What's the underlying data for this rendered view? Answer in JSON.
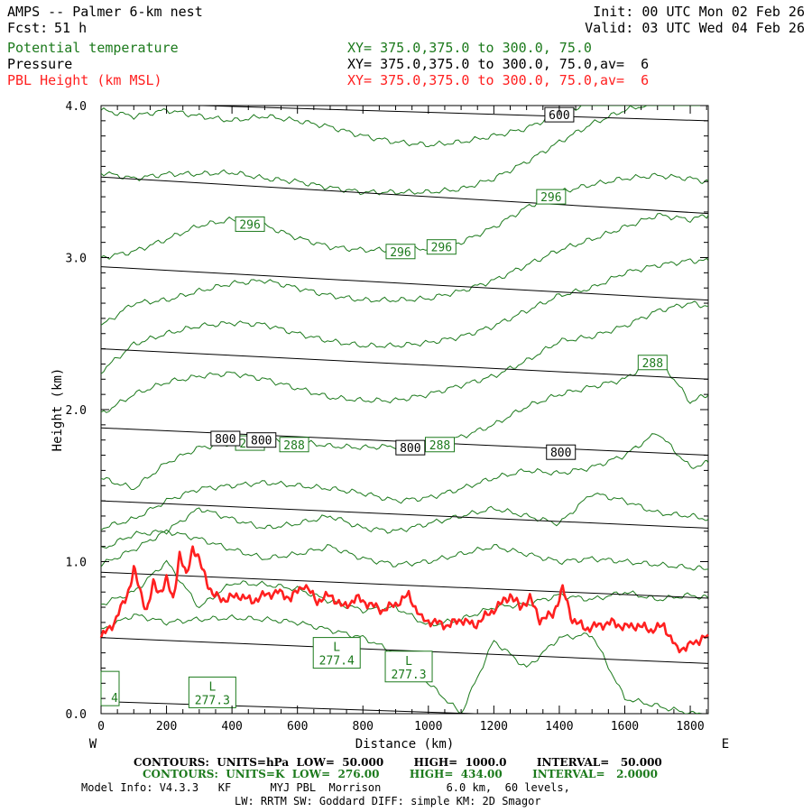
{
  "header": {
    "title": "AMPS -- Palmer 6-km nest",
    "init": "Init: 00 UTC Mon 02 Feb 26",
    "fcst_label": "Fcst:",
    "fcst_value": "51 h",
    "valid": "Valid: 03 UTC Wed 04 Feb 26",
    "fields": [
      {
        "name": "Potential temperature",
        "xy": "XY= 375.0,375.0 to 300.0, 75.0",
        "color": "#1c7a1c"
      },
      {
        "name": "Pressure",
        "xy": "XY= 375.0,375.0 to 300.0, 75.0,av=  6",
        "color": "#000000"
      },
      {
        "name": "PBL Height (km MSL)",
        "xy": "XY= 375.0,375.0 to 300.0, 75.0,av=  6",
        "color": "#ff2020"
      }
    ]
  },
  "footer": {
    "line1": "CONTOURS:  UNITS=hPa  LOW=  50.000        HIGH=  1000.0        INTERVAL=   50.000",
    "line2": "CONTOURS:  UNITS=K  LOW=  276.00        HIGH=  434.00        INTERVAL=   2.0000",
    "line3": "Model Info: V4.3.3   KF      MYJ PBL  Morrison          6.0 km,  60 levels,",
    "line4": "LW: RRTM SW: Goddard DIFF: simple KM: 2D Smagor"
  },
  "colors": {
    "theta": "#1c7a1c",
    "pressure": "#000000",
    "pbl": "#ff2020"
  },
  "chart_data": {
    "type": "line",
    "title": "AMPS -- Palmer 6-km nest",
    "xlabel": "Distance (km)",
    "ylabel": "Height (km)",
    "xlim": [
      0,
      1855
    ],
    "ylim": [
      0,
      4.0
    ],
    "x_ticks": [
      0,
      200,
      400,
      600,
      800,
      1000,
      1200,
      1400,
      1600,
      1800
    ],
    "x_minor_step": 50,
    "y_ticks": [
      0.0,
      1.0,
      2.0,
      3.0,
      4.0
    ],
    "y_tick_labels": [
      "0.0",
      "1.0",
      "2.0",
      "3.0",
      "4.0"
    ],
    "y_minor_step": 0.1,
    "x_end_labels": {
      "left": "W",
      "right": "E"
    },
    "pressure_lines": [
      {
        "x": [
          0,
          1855
        ],
        "y": [
          3.53,
          3.29
        ]
      },
      {
        "x": [
          0,
          1855
        ],
        "y": [
          2.94,
          2.72
        ]
      },
      {
        "x": [
          0,
          1855
        ],
        "y": [
          2.4,
          2.2
        ]
      },
      {
        "x": [
          0,
          1855
        ],
        "y": [
          1.88,
          1.7
        ]
      },
      {
        "x": [
          0,
          1855
        ],
        "y": [
          1.4,
          1.22
        ]
      },
      {
        "x": [
          0,
          1855
        ],
        "y": [
          0.93,
          0.76
        ]
      },
      {
        "x": [
          0,
          1855
        ],
        "y": [
          0.5,
          0.33
        ]
      },
      {
        "x": [
          0,
          1855
        ],
        "y": [
          0.08,
          -0.05
        ]
      },
      {
        "x": [
          0,
          1855
        ],
        "y": [
          4.02,
          3.9
        ]
      }
    ],
    "pressure_labels": [
      {
        "text": "600",
        "x": 1400,
        "y": 3.94
      },
      {
        "text": "800",
        "x": 380,
        "y": 1.81
      },
      {
        "text": "800",
        "x": 490,
        "y": 1.8
      },
      {
        "text": "800",
        "x": 945,
        "y": 1.75
      },
      {
        "text": "800",
        "x": 1405,
        "y": 1.72
      }
    ],
    "theta_series": [
      {
        "x": [
          0,
          100,
          200,
          300,
          400,
          500,
          600,
          700,
          800,
          900,
          1000,
          1100,
          1200,
          1300,
          1400,
          1500,
          1600,
          1700,
          1800,
          1855
        ],
        "y": [
          3.97,
          3.93,
          3.97,
          3.93,
          3.9,
          3.93,
          3.9,
          3.86,
          3.8,
          3.76,
          3.74,
          3.76,
          3.8,
          3.85,
          3.95,
          4.02,
          4.02,
          4.02,
          4.02,
          4.02
        ]
      },
      {
        "x": [
          0,
          100,
          200,
          300,
          400,
          500,
          600,
          700,
          800,
          900,
          1000,
          1100,
          1200,
          1300,
          1400,
          1500,
          1600,
          1700,
          1800,
          1855
        ],
        "y": [
          3.56,
          3.52,
          3.55,
          3.55,
          3.56,
          3.52,
          3.5,
          3.46,
          3.43,
          3.43,
          3.43,
          3.45,
          3.52,
          3.63,
          3.76,
          3.88,
          3.97,
          4.02,
          4.02,
          4.02
        ]
      },
      {
        "x": [
          0,
          100,
          200,
          300,
          400,
          500,
          600,
          700,
          800,
          900,
          1000,
          1100,
          1200,
          1300,
          1400,
          1500,
          1600,
          1700,
          1800,
          1855
        ],
        "y": [
          3.0,
          3.04,
          3.12,
          3.21,
          3.25,
          3.21,
          3.13,
          3.07,
          3.05,
          3.05,
          3.06,
          3.1,
          3.2,
          3.33,
          3.43,
          3.48,
          3.52,
          3.54,
          3.52,
          3.5
        ]
      },
      {
        "x": [
          0,
          100,
          200,
          300,
          400,
          500,
          600,
          700,
          800,
          900,
          1000,
          1100,
          1200,
          1300,
          1400,
          1500,
          1600,
          1700,
          1800,
          1855
        ],
        "y": [
          2.55,
          2.7,
          2.72,
          2.78,
          2.83,
          2.85,
          2.8,
          2.75,
          2.72,
          2.72,
          2.73,
          2.78,
          2.85,
          2.95,
          3.05,
          3.12,
          3.2,
          3.28,
          3.25,
          3.28
        ]
      },
      {
        "x": [
          0,
          100,
          200,
          300,
          400,
          500,
          600,
          700,
          800,
          900,
          1000,
          1100,
          1200,
          1300,
          1400,
          1500,
          1600,
          1700,
          1800,
          1855
        ],
        "y": [
          2.25,
          2.43,
          2.5,
          2.55,
          2.57,
          2.56,
          2.5,
          2.45,
          2.42,
          2.42,
          2.44,
          2.48,
          2.55,
          2.65,
          2.75,
          2.8,
          2.9,
          2.95,
          2.98,
          2.98
        ]
      },
      {
        "x": [
          0,
          100,
          200,
          300,
          400,
          500,
          600,
          700,
          800,
          900,
          1000,
          1100,
          1200,
          1300,
          1400,
          1500,
          1600,
          1700,
          1800,
          1855
        ],
        "y": [
          1.97,
          2.1,
          2.18,
          2.22,
          2.24,
          2.2,
          2.14,
          2.08,
          2.06,
          2.06,
          2.1,
          2.16,
          2.22,
          2.32,
          2.45,
          2.48,
          2.55,
          2.65,
          2.7,
          2.68
        ]
      },
      {
        "x": [
          0,
          100,
          200,
          300,
          400,
          500,
          600,
          700,
          800,
          900,
          1000,
          1100,
          1200,
          1300,
          1400,
          1500,
          1600,
          1700,
          1800,
          1855
        ],
        "y": [
          1.55,
          1.48,
          1.65,
          1.75,
          1.78,
          1.8,
          1.79,
          1.76,
          1.75,
          1.76,
          1.78,
          1.82,
          1.9,
          2.02,
          2.1,
          2.15,
          2.2,
          2.35,
          2.05,
          2.1
        ]
      },
      {
        "x": [
          0,
          100,
          200,
          300,
          400,
          500,
          600,
          700,
          800,
          900,
          1000,
          1100,
          1200,
          1300,
          1400,
          1500,
          1600,
          1700,
          1800,
          1855
        ],
        "y": [
          1.22,
          1.28,
          1.4,
          1.48,
          1.5,
          1.52,
          1.5,
          1.48,
          1.45,
          1.4,
          1.42,
          1.48,
          1.55,
          1.6,
          1.58,
          1.62,
          1.7,
          1.85,
          1.62,
          1.65
        ]
      },
      {
        "x": [
          0,
          100,
          200,
          300,
          400,
          500,
          600,
          700,
          800,
          900,
          1000,
          1100,
          1200,
          1300,
          1400,
          1500,
          1600,
          1700,
          1800,
          1855
        ],
        "y": [
          1.08,
          1.18,
          1.2,
          1.35,
          1.28,
          1.22,
          1.25,
          1.3,
          1.22,
          1.2,
          1.25,
          1.3,
          1.35,
          1.3,
          1.25,
          1.45,
          1.4,
          1.32,
          1.3,
          1.28
        ]
      },
      {
        "x": [
          0,
          100,
          200,
          300,
          400,
          500,
          600,
          700,
          800,
          900,
          1000,
          1100,
          1200,
          1300,
          1400,
          1500,
          1600,
          1700,
          1800,
          1855
        ],
        "y": [
          0.98,
          1.08,
          1.2,
          1.15,
          1.08,
          1.02,
          1.05,
          1.1,
          1.02,
          0.98,
          1.0,
          1.05,
          1.1,
          1.05,
          1.0,
          1.02,
          1.0,
          0.98,
          0.96,
          0.95
        ]
      },
      {
        "x": [
          0,
          100,
          200,
          300,
          400,
          500,
          600,
          700,
          800,
          900,
          1000,
          1100,
          1200,
          1300,
          1400,
          1500,
          1600,
          1700,
          1800,
          1855
        ],
        "y": [
          0.72,
          0.8,
          1.0,
          0.7,
          0.86,
          0.85,
          0.82,
          0.74,
          0.68,
          0.7,
          0.58,
          0.62,
          0.7,
          0.72,
          0.78,
          0.75,
          0.8,
          0.75,
          0.78,
          0.76
        ]
      },
      {
        "x": [
          0,
          100,
          200,
          300,
          400,
          500,
          600,
          700,
          800,
          900,
          1000,
          1100,
          1200,
          1300,
          1400,
          1500,
          1600,
          1700,
          1800,
          1855
        ],
        "y": [
          0.55,
          0.65,
          0.6,
          0.62,
          0.63,
          0.62,
          0.6,
          0.55,
          0.5,
          0.4,
          0.2,
          0.0,
          0.48,
          0.3,
          0.5,
          0.52,
          0.1,
          0.05,
          0.0,
          0.0
        ]
      }
    ],
    "theta_labels": [
      {
        "text": "296",
        "x": 1375,
        "y": 3.4
      },
      {
        "text": "296",
        "x": 455,
        "y": 3.22
      },
      {
        "text": "296",
        "x": 915,
        "y": 3.04
      },
      {
        "text": "296",
        "x": 1040,
        "y": 3.07
      },
      {
        "text": "288",
        "x": 1685,
        "y": 2.31
      },
      {
        "text": "288",
        "x": 455,
        "y": 1.78
      },
      {
        "text": "288",
        "x": 590,
        "y": 1.77
      },
      {
        "text": "288",
        "x": 1035,
        "y": 1.77
      }
    ],
    "theta_lows": [
      {
        "letter": "L",
        "value": "277.4",
        "x": 720,
        "y": 0.4
      },
      {
        "letter": "L",
        "value": "277.3",
        "x": 940,
        "y": 0.31
      },
      {
        "letter": "L",
        "value": "277.3",
        "x": 340,
        "y": 0.14
      },
      {
        "letter": "",
        "value": "4",
        "x": 30,
        "y": 0.1
      }
    ],
    "pbl_height": {
      "name": "PBL Height (km MSL)",
      "x": [
        0,
        40,
        80,
        100,
        120,
        140,
        160,
        180,
        200,
        220,
        240,
        260,
        280,
        300,
        320,
        340,
        380,
        420,
        460,
        500,
        540,
        580,
        620,
        660,
        700,
        740,
        780,
        820,
        860,
        900,
        940,
        980,
        1020,
        1060,
        1100,
        1140,
        1180,
        1220,
        1250,
        1280,
        1310,
        1340,
        1380,
        1410,
        1440,
        1480,
        1520,
        1560,
        1600,
        1640,
        1680,
        1720,
        1760,
        1800,
        1855
      ],
      "y": [
        0.5,
        0.6,
        0.78,
        0.95,
        0.8,
        0.68,
        0.85,
        0.8,
        0.88,
        0.75,
        1.05,
        0.9,
        1.1,
        1.0,
        0.9,
        0.78,
        0.75,
        0.78,
        0.74,
        0.78,
        0.8,
        0.76,
        0.85,
        0.74,
        0.78,
        0.7,
        0.76,
        0.72,
        0.68,
        0.72,
        0.78,
        0.62,
        0.6,
        0.58,
        0.62,
        0.58,
        0.65,
        0.72,
        0.78,
        0.7,
        0.76,
        0.62,
        0.65,
        0.82,
        0.62,
        0.56,
        0.58,
        0.6,
        0.57,
        0.58,
        0.55,
        0.58,
        0.42,
        0.45,
        0.52
      ]
    }
  }
}
